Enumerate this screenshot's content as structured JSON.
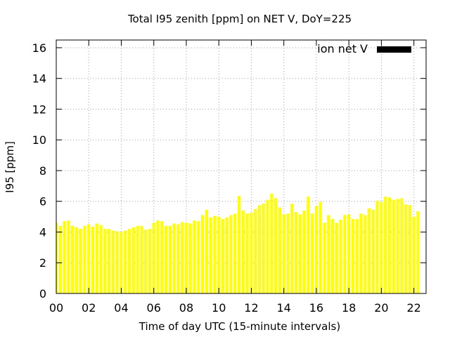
{
  "chart_data": {
    "type": "bar",
    "title": "Total I95 zenith [ppm] on NET V, DoY=225",
    "xlabel": "Time of day UTC (15-minute intervals)",
    "ylabel": "I95 [ppm]",
    "ylim": [
      0,
      16.5
    ],
    "yticks": [
      0,
      2,
      4,
      6,
      8,
      10,
      12,
      14,
      16
    ],
    "xlim": [
      0,
      22.75
    ],
    "xticks": [
      0,
      2,
      4,
      6,
      8,
      10,
      12,
      14,
      16,
      18,
      20,
      22
    ],
    "xtick_labels": [
      "00",
      "02",
      "04",
      "06",
      "08",
      "10",
      "12",
      "14",
      "16",
      "18",
      "20",
      "22"
    ],
    "grid": true,
    "legend_position": "top-right",
    "series": [
      {
        "name": "ion net V",
        "bar_color": "#ffff00",
        "legend_color": "#000000",
        "x_start": 0,
        "x_step": 0.25,
        "values": [
          4.6,
          4.4,
          4.7,
          4.75,
          4.4,
          4.3,
          4.2,
          4.4,
          4.5,
          4.35,
          4.55,
          4.45,
          4.2,
          4.2,
          4.1,
          4.05,
          4.0,
          4.1,
          4.2,
          4.3,
          4.4,
          4.4,
          4.15,
          4.2,
          4.6,
          4.75,
          4.7,
          4.4,
          4.4,
          4.55,
          4.5,
          4.65,
          4.6,
          4.55,
          4.75,
          4.7,
          5.1,
          5.45,
          4.95,
          5.05,
          5.0,
          4.85,
          4.95,
          5.1,
          5.2,
          6.35,
          5.4,
          5.2,
          5.25,
          5.5,
          5.75,
          5.85,
          6.1,
          6.5,
          6.2,
          5.6,
          5.15,
          5.2,
          5.85,
          5.3,
          5.15,
          5.4,
          6.3,
          5.2,
          5.7,
          5.95,
          4.6,
          5.1,
          4.85,
          4.6,
          4.8,
          5.1,
          5.15,
          4.85,
          4.85,
          5.2,
          5.1,
          5.55,
          5.45,
          6.05,
          5.95,
          6.3,
          6.25,
          6.1,
          6.15,
          6.2,
          5.8,
          5.75,
          5.0,
          5.35
        ]
      }
    ]
  }
}
